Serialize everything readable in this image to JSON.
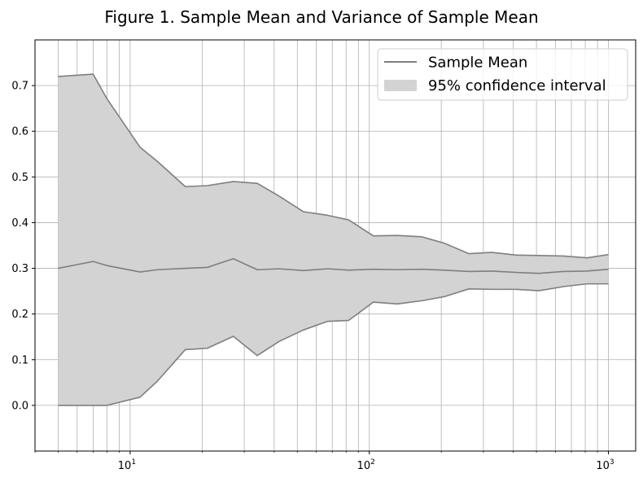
{
  "chart_data": {
    "type": "line",
    "title": "Figure 1. Sample Mean and Variance of Sample Mean",
    "xlabel": "",
    "ylabel": "",
    "x_scale": "log",
    "xlim": [
      4,
      1300
    ],
    "ylim": [
      -0.1,
      0.8
    ],
    "grid": true,
    "legend_position": "top-right",
    "x": [
      5,
      7,
      8,
      11,
      13,
      17,
      21,
      27,
      34,
      42,
      53,
      67,
      82,
      104,
      131,
      166,
      206,
      261,
      325,
      411,
      513,
      648,
      813,
      1000
    ],
    "series": [
      {
        "name": "Sample Mean",
        "color": "#7f7f7f",
        "values": [
          0.3,
          0.315,
          0.306,
          0.292,
          0.297,
          0.3,
          0.302,
          0.321,
          0.297,
          0.299,
          0.295,
          0.299,
          0.296,
          0.298,
          0.297,
          0.298,
          0.296,
          0.293,
          0.294,
          0.291,
          0.289,
          0.293,
          0.294,
          0.298
        ]
      }
    ],
    "band": {
      "name": "95% confidence interval",
      "color": "#d3d3d3",
      "upper": [
        0.72,
        0.725,
        0.671,
        0.565,
        0.534,
        0.479,
        0.481,
        0.49,
        0.486,
        0.458,
        0.424,
        0.416,
        0.406,
        0.371,
        0.372,
        0.369,
        0.355,
        0.332,
        0.335,
        0.329,
        0.328,
        0.327,
        0.323,
        0.33
      ],
      "lower": [
        0.0,
        0.0,
        0.0,
        0.018,
        0.053,
        0.122,
        0.125,
        0.151,
        0.109,
        0.14,
        0.165,
        0.184,
        0.186,
        0.226,
        0.222,
        0.229,
        0.238,
        0.255,
        0.254,
        0.254,
        0.251,
        0.26,
        0.266,
        0.266
      ]
    },
    "y_ticks": [
      "0.0",
      "0.1",
      "0.2",
      "0.3",
      "0.4",
      "0.5",
      "0.6",
      "0.7"
    ],
    "y_tick_values": [
      0.0,
      0.1,
      0.2,
      0.3,
      0.4,
      0.5,
      0.6,
      0.7
    ],
    "x_major_ticks": [
      10,
      100,
      1000
    ],
    "x_tick_labels": [
      {
        "base": "10",
        "exp": "1"
      },
      {
        "base": "10",
        "exp": "2"
      },
      {
        "base": "10",
        "exp": "3"
      }
    ]
  }
}
